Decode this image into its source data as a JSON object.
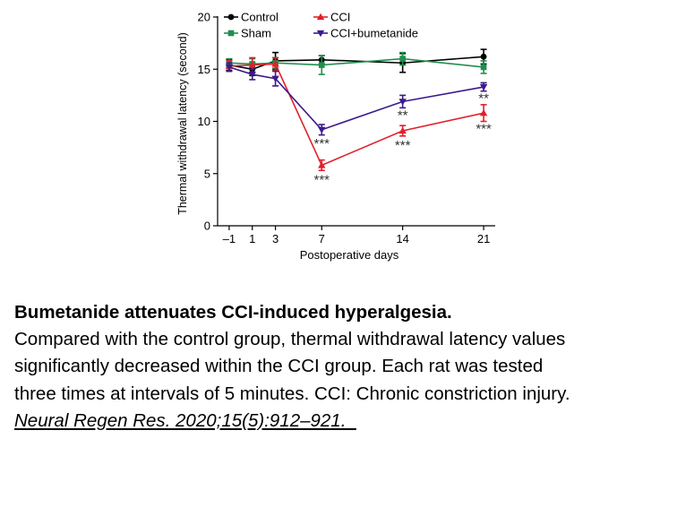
{
  "chart_data": {
    "type": "line",
    "xlabel": "Postoperative days",
    "ylabel": "Thermal withdrawal latency (second)",
    "x": [
      -1,
      1,
      3,
      7,
      14,
      21
    ],
    "x_tick_labels": [
      "–1",
      "1",
      "3",
      "7",
      "14",
      "21"
    ],
    "ylim": [
      0,
      20
    ],
    "y_ticks": [
      0,
      5,
      10,
      15,
      20
    ],
    "y_tick_labels": [
      "0",
      "5",
      "10",
      "15",
      "20"
    ],
    "grid": false,
    "legend_position": "top",
    "series": [
      {
        "name": "Control",
        "color": "#000000",
        "marker": "circle",
        "values": [
          15.4,
          15.0,
          15.8,
          15.9,
          15.6,
          16.2
        ],
        "errors": [
          0.5,
          0.6,
          0.8,
          0.4,
          0.9,
          0.7
        ]
      },
      {
        "name": "Sham",
        "color": "#1f8f4e",
        "marker": "square",
        "values": [
          15.6,
          15.5,
          15.6,
          15.4,
          16.0,
          15.2
        ],
        "errors": [
          0.4,
          0.5,
          0.5,
          0.9,
          0.6,
          0.6
        ]
      },
      {
        "name": "CCI",
        "color": "#e0202a",
        "marker": "triangle-up",
        "values": [
          15.3,
          15.4,
          15.5,
          5.8,
          9.1,
          10.8
        ],
        "errors": [
          0.5,
          0.7,
          0.6,
          0.5,
          0.5,
          0.8
        ]
      },
      {
        "name": "CCI+bumetanide",
        "color": "#3b1a8c",
        "marker": "triangle-down",
        "values": [
          15.2,
          14.5,
          14.1,
          9.2,
          11.9,
          13.3
        ],
        "errors": [
          0.4,
          0.5,
          0.7,
          0.5,
          0.6,
          0.4
        ]
      }
    ],
    "annotations": [
      {
        "text": "***",
        "x": 7,
        "y": 8.0
      },
      {
        "text": "***",
        "x": 7,
        "y": 4.5
      },
      {
        "text": "**",
        "x": 14,
        "y": 10.7
      },
      {
        "text": "***",
        "x": 14,
        "y": 7.8
      },
      {
        "text": "**",
        "x": 21,
        "y": 12.3
      },
      {
        "text": "***",
        "x": 21,
        "y": 9.4
      }
    ]
  },
  "caption": {
    "title": "Bumetanide attenuates CCI-induced hyperalgesia.",
    "line1": "Compared with the control group, thermal withdrawal latency values",
    "line2": "significantly decreased within the CCI group. Each rat was tested",
    "line3": "three times at intervals of 5 minutes. CCI: Chronic constriction injury.",
    "citation": "Neural Regen Res. 2020;15(5):912–921.  "
  }
}
